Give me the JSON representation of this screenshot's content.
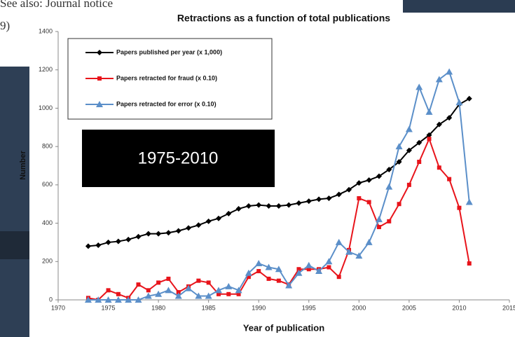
{
  "background_text": [
    "See also: Journal notice",
    "9)"
  ],
  "overlay_label": "1975-2010",
  "chart_data": {
    "type": "line",
    "title": "Retractions as a function of total publications",
    "x_label": "Year of publication",
    "y_label": "Number",
    "xlim": [
      1970,
      2015
    ],
    "xticks": [
      1970,
      1975,
      1980,
      1985,
      1990,
      1995,
      2000,
      2005,
      2010,
      2015
    ],
    "ylim": [
      0,
      1400
    ],
    "yticks": [
      0,
      200,
      400,
      600,
      800,
      1000,
      1200,
      1400
    ],
    "grid": false,
    "x": [
      1973,
      1974,
      1975,
      1976,
      1977,
      1978,
      1979,
      1980,
      1981,
      1982,
      1983,
      1984,
      1985,
      1986,
      1987,
      1988,
      1989,
      1990,
      1991,
      1992,
      1993,
      1994,
      1995,
      1996,
      1997,
      1998,
      1999,
      2000,
      2001,
      2002,
      2003,
      2004,
      2005,
      2006,
      2007,
      2008,
      2009,
      2010,
      2011
    ],
    "series": [
      {
        "name": "Papers published per year (x 1,000)",
        "color": "#000000",
        "marker": "diamond",
        "values": [
          280,
          285,
          300,
          305,
          315,
          330,
          345,
          345,
          350,
          360,
          375,
          390,
          410,
          425,
          450,
          475,
          490,
          495,
          490,
          490,
          495,
          505,
          515,
          525,
          530,
          550,
          575,
          610,
          625,
          645,
          680,
          720,
          780,
          820,
          860,
          915,
          950,
          1020,
          1050
        ]
      },
      {
        "name": "Papers retracted for fraud (x 0.10)",
        "color": "#e8141b",
        "marker": "square",
        "values": [
          10,
          0,
          50,
          30,
          10,
          80,
          50,
          90,
          110,
          40,
          70,
          100,
          90,
          30,
          30,
          30,
          120,
          150,
          110,
          100,
          80,
          160,
          160,
          160,
          170,
          120,
          260,
          530,
          510,
          380,
          410,
          500,
          600,
          720,
          840,
          690,
          630,
          480,
          190
        ]
      },
      {
        "name": "Papers retracted for error (x 0.10)",
        "color": "#5b8fc9",
        "marker": "triangle",
        "values": [
          0,
          0,
          0,
          0,
          0,
          0,
          20,
          30,
          50,
          20,
          60,
          20,
          20,
          50,
          70,
          50,
          140,
          190,
          170,
          160,
          75,
          140,
          180,
          150,
          200,
          300,
          250,
          230,
          300,
          420,
          590,
          800,
          890,
          1110,
          980,
          1150,
          1190,
          1030,
          510
        ]
      }
    ]
  }
}
